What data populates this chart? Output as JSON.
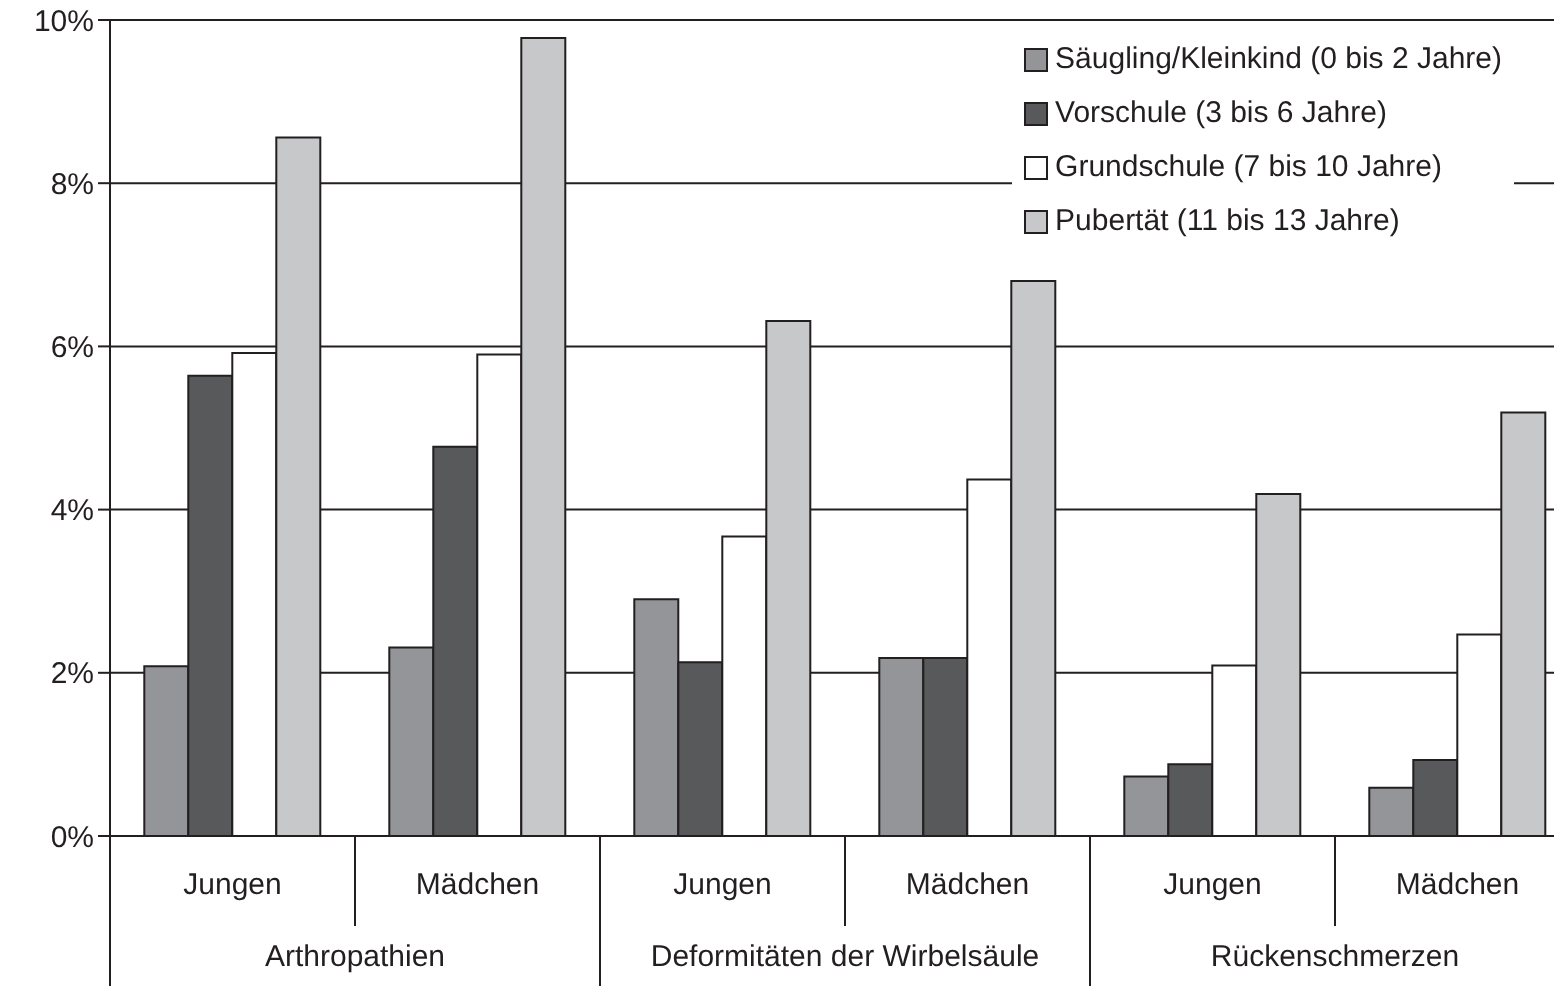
{
  "chart_data": {
    "type": "bar",
    "categories": [
      "Jungen",
      "Mädchen",
      "Jungen",
      "Mädchen",
      "Jungen",
      "Mädchen"
    ],
    "annotations": [
      "Arthropathien",
      "Deformitäten der Wirbelsäule",
      "Rückenschmerzen"
    ],
    "series": [
      {
        "name": "Säugling/Kleinkind (0 bis 2 Jahre)",
        "color": "#939598",
        "values": [
          2.08,
          2.31,
          2.9,
          2.18,
          0.73,
          0.59
        ]
      },
      {
        "name": "Vorschule (3 bis 6 Jahre)",
        "color": "#58595b",
        "values": [
          5.64,
          4.77,
          2.13,
          2.18,
          0.88,
          0.93
        ]
      },
      {
        "name": "Grundschule (7 bis 10 Jahre)",
        "color": "#ffffff",
        "values": [
          5.92,
          5.9,
          3.67,
          4.37,
          2.09,
          2.47
        ]
      },
      {
        "name": "Pubertät (11 bis 13 Jahre)",
        "color": "#c7c8ca",
        "values": [
          8.56,
          9.78,
          6.31,
          6.8,
          4.19,
          5.19
        ]
      }
    ],
    "ylim": [
      0,
      10
    ],
    "yticks": [
      {
        "value": 0,
        "label": "0%"
      },
      {
        "value": 2,
        "label": "2%"
      },
      {
        "value": 4,
        "label": "4%"
      },
      {
        "value": 6,
        "label": "6%"
      },
      {
        "value": 8,
        "label": "8%"
      },
      {
        "value": 10,
        "label": "10%"
      }
    ],
    "grid": "y",
    "legend": "top right"
  }
}
